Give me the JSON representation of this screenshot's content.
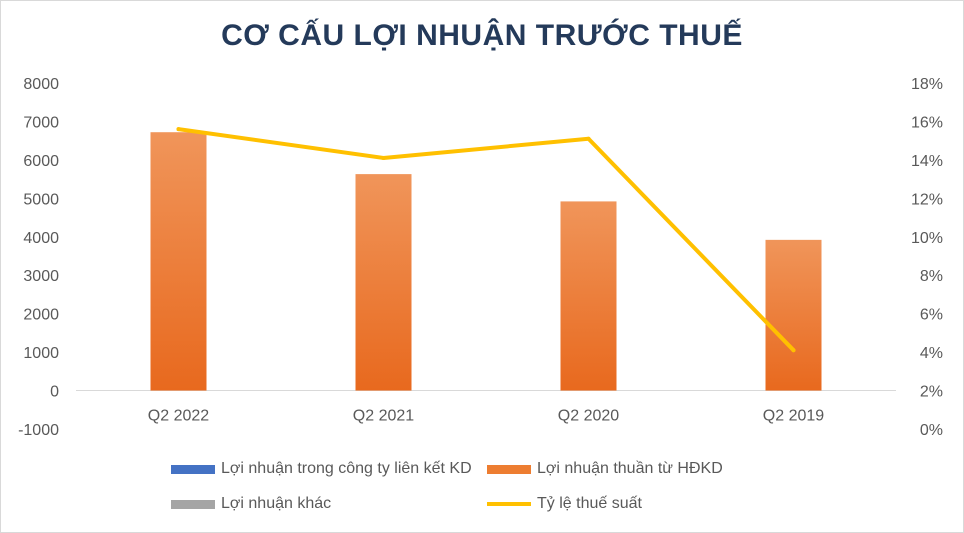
{
  "chart_data": {
    "type": "bar",
    "title": "CƠ CẤU LỢI NHUẬN TRƯỚC THUẾ",
    "categories": [
      "Q2 2022",
      "Q2 2021",
      "Q2 2020",
      "Q2 2019"
    ],
    "series": [
      {
        "name": "Lợi nhuận trong công ty liên kết KD",
        "type": "bar",
        "color": "#4472c4",
        "values": [
          0,
          0,
          0,
          0
        ]
      },
      {
        "name": "Lợi nhuận thuần từ HĐKD",
        "type": "bar",
        "color": "#ed7d31",
        "values": [
          6720,
          5630,
          4920,
          3920
        ]
      },
      {
        "name": "Lợi nhuận khác",
        "type": "bar",
        "color": "#a5a5a5",
        "values": [
          0,
          0,
          0,
          0
        ]
      },
      {
        "name": "Tỷ lệ thuế suất",
        "type": "line",
        "axis": "right",
        "color": "#ffc000",
        "values": [
          15.6,
          14.1,
          15.1,
          4.1
        ]
      }
    ],
    "ylim": [
      -1000,
      8000
    ],
    "yticks": [
      "-1000",
      "0",
      "1000",
      "2000",
      "3000",
      "4000",
      "5000",
      "6000",
      "7000",
      "8000"
    ],
    "y2lim": [
      0,
      18
    ],
    "y2ticks": [
      "0%",
      "2%",
      "4%",
      "6%",
      "8%",
      "10%",
      "12%",
      "14%",
      "16%",
      "18%"
    ],
    "grid": false,
    "legend_position": "bottom"
  }
}
